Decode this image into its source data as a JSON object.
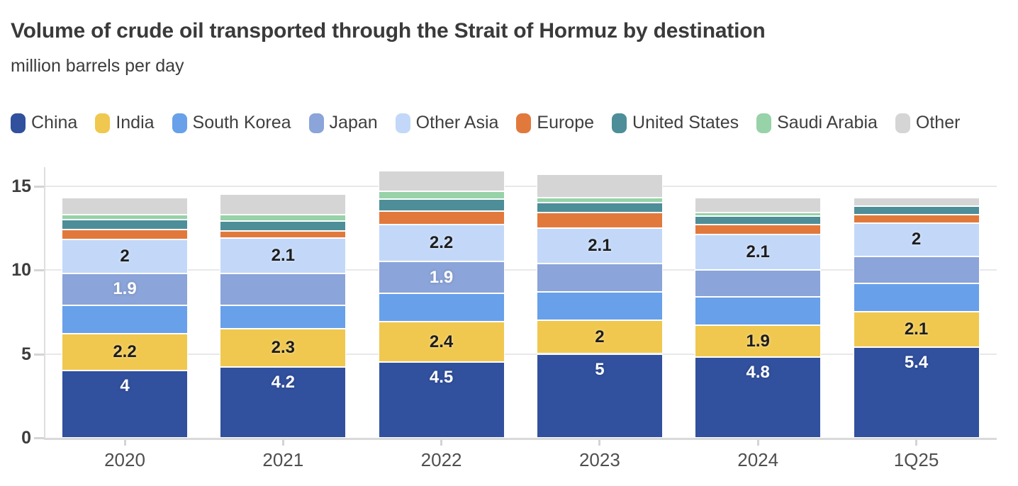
{
  "header": {
    "title": "Volume of crude oil transported through the Strait of Hormuz by destination",
    "subtitle": "million barrels per day"
  },
  "chart_data": {
    "type": "bar",
    "stacked": true,
    "title": "Volume of crude oil transported through the Strait of Hormuz by destination",
    "units_label": "million barrels per day",
    "grid": true,
    "legend_position": "top",
    "categories": [
      "2020",
      "2021",
      "2022",
      "2023",
      "2024",
      "1Q25"
    ],
    "y_ticks": [
      "0",
      "5",
      "10",
      "15"
    ],
    "ylim": [
      0,
      16.3
    ],
    "totals": [
      14.3,
      14.5,
      15.9,
      15.7,
      14.3,
      14.3
    ],
    "series": [
      {
        "name": "China",
        "color": "#31509d",
        "values": [
          4,
          4.2,
          4.5,
          5,
          4.8,
          5.4
        ],
        "labels": [
          "4",
          "4.2",
          "4.5",
          "5",
          "4.8",
          "5.4"
        ],
        "label_style": "light",
        "label_pos": "top"
      },
      {
        "name": "India",
        "color": "#f0c84f",
        "values": [
          2.2,
          2.3,
          2.4,
          2,
          1.9,
          2.1
        ],
        "labels": [
          "2.2",
          "2.3",
          "2.4",
          "2",
          "1.9",
          "2.1"
        ],
        "label_style": "dark",
        "label_pos": "center"
      },
      {
        "name": "South Korea",
        "color": "#68a0ea",
        "values": [
          1.7,
          1.4,
          1.7,
          1.7,
          1.7,
          1.7
        ],
        "labels": null,
        "label_style": "light",
        "label_pos": "center"
      },
      {
        "name": "Japan",
        "color": "#8ba4d9",
        "values": [
          1.9,
          1.9,
          1.9,
          1.7,
          1.6,
          1.6
        ],
        "labels": [
          "1.9",
          null,
          "1.9",
          null,
          null,
          null
        ],
        "label_style": "light",
        "label_pos": "center"
      },
      {
        "name": "Other Asia",
        "color": "#c3d8f8",
        "values": [
          2,
          2.1,
          2.2,
          2.1,
          2.1,
          2
        ],
        "labels": [
          "2",
          "2.1",
          "2.2",
          "2.1",
          "2.1",
          "2"
        ],
        "label_style": "dark",
        "label_pos": "center"
      },
      {
        "name": "Europe",
        "color": "#e2793c",
        "values": [
          0.6,
          0.4,
          0.8,
          0.9,
          0.6,
          0.5
        ],
        "labels": null,
        "label_style": "light",
        "label_pos": "center"
      },
      {
        "name": "United States",
        "color": "#4d8e98",
        "values": [
          0.6,
          0.6,
          0.7,
          0.6,
          0.5,
          0.5
        ],
        "labels": null,
        "label_style": "light",
        "label_pos": "center"
      },
      {
        "name": "Saudi Arabia",
        "color": "#97d2a8",
        "values": [
          0.3,
          0.4,
          0.5,
          0.3,
          0.2,
          0
        ],
        "labels": null,
        "label_style": "dark",
        "label_pos": "center"
      },
      {
        "name": "Other",
        "color": "#d5d5d5",
        "values": [
          1.0,
          1.2,
          1.2,
          1.4,
          0.9,
          0.5
        ],
        "labels": null,
        "label_style": "dark",
        "label_pos": "center"
      }
    ]
  }
}
